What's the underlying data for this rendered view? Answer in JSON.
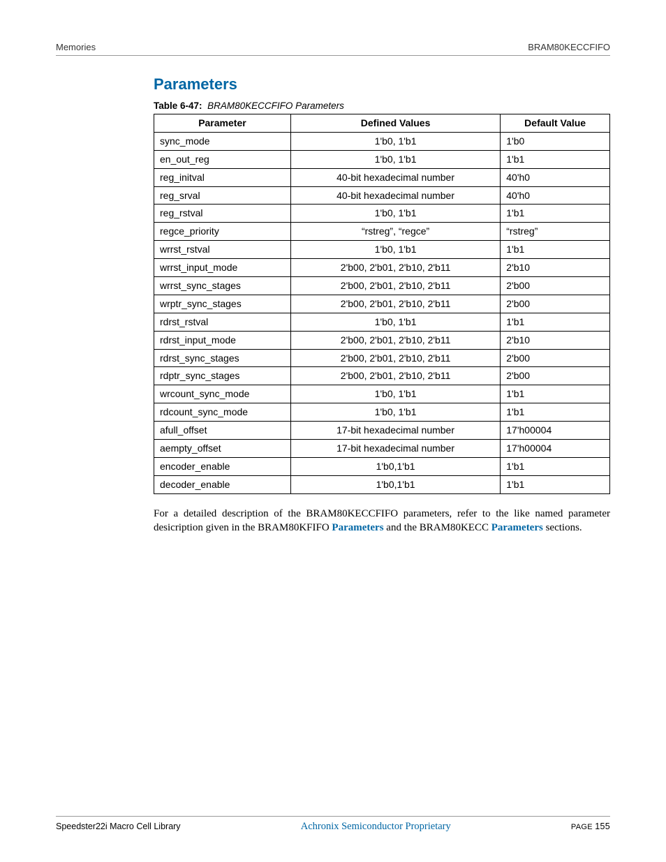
{
  "header": {
    "left": "Memories",
    "right": "BRAM80KECCFIFO"
  },
  "section_title": "Parameters",
  "table_caption_label": "Table 6-47:",
  "table_caption_title": "BRAM80KECCFIFO Parameters",
  "columns": [
    "Parameter",
    "Defined Values",
    "Default Value"
  ],
  "rows": [
    [
      "sync_mode",
      "1'b0, 1'b1",
      "1'b0"
    ],
    [
      "en_out_reg",
      "1'b0, 1'b1",
      "1'b1"
    ],
    [
      "reg_initval",
      "40-bit hexadecimal number",
      "40'h0"
    ],
    [
      "reg_srval",
      "40-bit hexadecimal number",
      "40'h0"
    ],
    [
      "reg_rstval",
      "1'b0, 1'b1",
      "1'b1"
    ],
    [
      "regce_priority",
      "“rstreg”, “regce”",
      "“rstreg”"
    ],
    [
      "wrrst_rstval",
      "1'b0, 1'b1",
      "1'b1"
    ],
    [
      "wrrst_input_mode",
      "2'b00, 2'b01, 2'b10, 2'b11",
      "2'b10"
    ],
    [
      "wrrst_sync_stages",
      "2'b00, 2'b01, 2'b10, 2'b11",
      "2'b00"
    ],
    [
      "wrptr_sync_stages",
      "2'b00, 2'b01, 2'b10, 2'b11",
      "2'b00"
    ],
    [
      "rdrst_rstval",
      "1'b0, 1'b1",
      "1'b1"
    ],
    [
      "rdrst_input_mode",
      "2'b00, 2'b01, 2'b10, 2'b11",
      "2'b10"
    ],
    [
      "rdrst_sync_stages",
      "2'b00, 2'b01, 2'b10, 2'b11",
      "2'b00"
    ],
    [
      "rdptr_sync_stages",
      "2'b00, 2'b01, 2'b10, 2'b11",
      "2'b00"
    ],
    [
      "wrcount_sync_mode",
      "1'b0, 1'b1",
      "1'b1"
    ],
    [
      "rdcount_sync_mode",
      "1'b0, 1'b1",
      "1'b1"
    ],
    [
      "afull_offset",
      "17-bit hexadecimal number",
      "17'h00004"
    ],
    [
      "aempty_offset",
      "17-bit hexadecimal number",
      "17'h00004"
    ],
    [
      "encoder_enable",
      "1'b0,1'b1",
      "1'b1"
    ],
    [
      "decoder_enable",
      "1'b0,1'b1",
      "1'b1"
    ]
  ],
  "paragraph": {
    "pre": "For a detailed description of the BRAM80KECCFIFO parameters, refer to the like named parameter desicription given in the BRAM80KFIFO ",
    "link1": "Parameters",
    "mid": "  and the BRAM80KECC ",
    "link2": "Parameters",
    "post": " sections."
  },
  "footer": {
    "left": "Speedster22i Macro Cell Library",
    "center": "Achronix Semiconductor Proprietary",
    "right_label": "PAGE ",
    "right_num": "155"
  },
  "colors": {
    "accent": "#0066a4",
    "rule": "#999999",
    "text": "#000000"
  }
}
